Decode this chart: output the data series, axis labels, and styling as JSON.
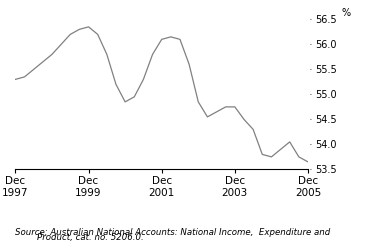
{
  "ylabel": "%",
  "source_line1": "Source: Australian National Accounts: National Income,  Expenditure and",
  "source_line2": "        Product, cat. no. 5206.0.",
  "ylim": [
    53.5,
    56.5
  ],
  "yticks": [
    53.5,
    54.0,
    54.5,
    55.0,
    55.5,
    56.0,
    56.5
  ],
  "ytick_labels": [
    "53.5",
    "54.0",
    "54.5",
    "55.0",
    "55.5",
    "56.0",
    "56.5"
  ],
  "xtick_labels": [
    "Dec\n1997",
    "Dec\n1999",
    "Dec\n2001",
    "Dec\n2003",
    "Dec\n2005"
  ],
  "xtick_positions": [
    0,
    8,
    16,
    24,
    32
  ],
  "line_color": "#808080",
  "background_color": "#ffffff",
  "data_x": [
    0,
    1,
    2,
    3,
    4,
    5,
    6,
    7,
    8,
    9,
    10,
    11,
    12,
    13,
    14,
    15,
    16,
    17,
    18,
    19,
    20,
    21,
    22,
    23,
    24,
    25,
    26,
    27,
    28,
    29,
    30,
    31,
    32
  ],
  "data_y": [
    55.3,
    55.35,
    55.5,
    55.65,
    55.8,
    56.0,
    56.2,
    56.3,
    56.35,
    56.2,
    55.8,
    55.2,
    54.85,
    54.95,
    55.3,
    55.8,
    56.1,
    56.15,
    56.1,
    55.6,
    54.85,
    54.55,
    54.65,
    54.75,
    54.75,
    54.5,
    54.3,
    53.8,
    53.75,
    53.9,
    54.05,
    53.75,
    53.65
  ]
}
